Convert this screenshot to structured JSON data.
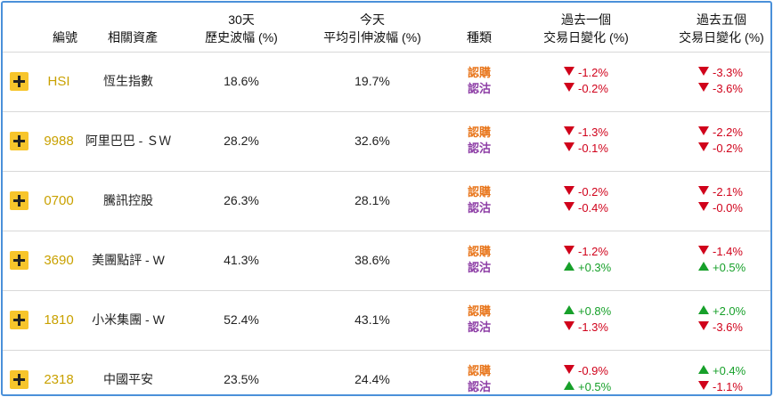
{
  "headers": {
    "code": "編號",
    "asset": "相關資產",
    "vol30_l1": "30天",
    "vol30_l2": "歷史波幅 (%)",
    "voltoday_l1": "今天",
    "voltoday_l2": "平均引伸波幅 (%)",
    "type": "種類",
    "chg1_l1": "過去一個",
    "chg1_l2": "交易日變化 (%)",
    "chg5_l1": "過去五個",
    "chg5_l2": "交易日變化 (%)"
  },
  "rows": [
    {
      "code": "HSI",
      "name": "恆生指數",
      "vol30": "18.6%",
      "vol_today": "19.7%",
      "call": "認購",
      "put": "認沽",
      "chg1_call": "-1.2%",
      "chg1_put": "-0.2%",
      "chg5_call": "-3.3%",
      "chg5_put": "-3.6%"
    },
    {
      "code": "9988",
      "name": "阿里巴巴 - ＳＷ",
      "vol30": "28.2%",
      "vol_today": "32.6%",
      "call": "認購",
      "put": "認沽",
      "chg1_call": "-1.3%",
      "chg1_put": "-0.1%",
      "chg5_call": "-2.2%",
      "chg5_put": "-0.2%"
    },
    {
      "code": "0700",
      "name": "騰訊控股",
      "vol30": "26.3%",
      "vol_today": "28.1%",
      "call": "認購",
      "put": "認沽",
      "chg1_call": "-0.2%",
      "chg1_put": "-0.4%",
      "chg5_call": "-2.1%",
      "chg5_put": "-0.0%"
    },
    {
      "code": "3690",
      "name": "美團點評 - W",
      "vol30": "41.3%",
      "vol_today": "38.6%",
      "call": "認購",
      "put": "認沽",
      "chg1_call": "-1.2%",
      "chg1_put": "+0.3%",
      "chg5_call": "-1.4%",
      "chg5_put": "+0.5%"
    },
    {
      "code": "1810",
      "name": "小米集團 - W",
      "vol30": "52.4%",
      "vol_today": "43.1%",
      "call": "認購",
      "put": "認沽",
      "chg1_call": "+0.8%",
      "chg1_put": "-1.3%",
      "chg5_call": "+2.0%",
      "chg5_put": "-3.6%"
    },
    {
      "code": "2318",
      "name": "中國平安",
      "vol30": "23.5%",
      "vol_today": "24.4%",
      "call": "認購",
      "put": "認沽",
      "chg1_call": "-0.9%",
      "chg1_put": "+0.5%",
      "chg5_call": "+0.4%",
      "chg5_put": "-1.1%"
    }
  ],
  "colors": {
    "accent": "#f7c52b",
    "code": "#c9a100",
    "call": "#e8761c",
    "put": "#8e3fa6",
    "down": "#d0021b",
    "up": "#17a02a",
    "border": "#4a90d9"
  }
}
